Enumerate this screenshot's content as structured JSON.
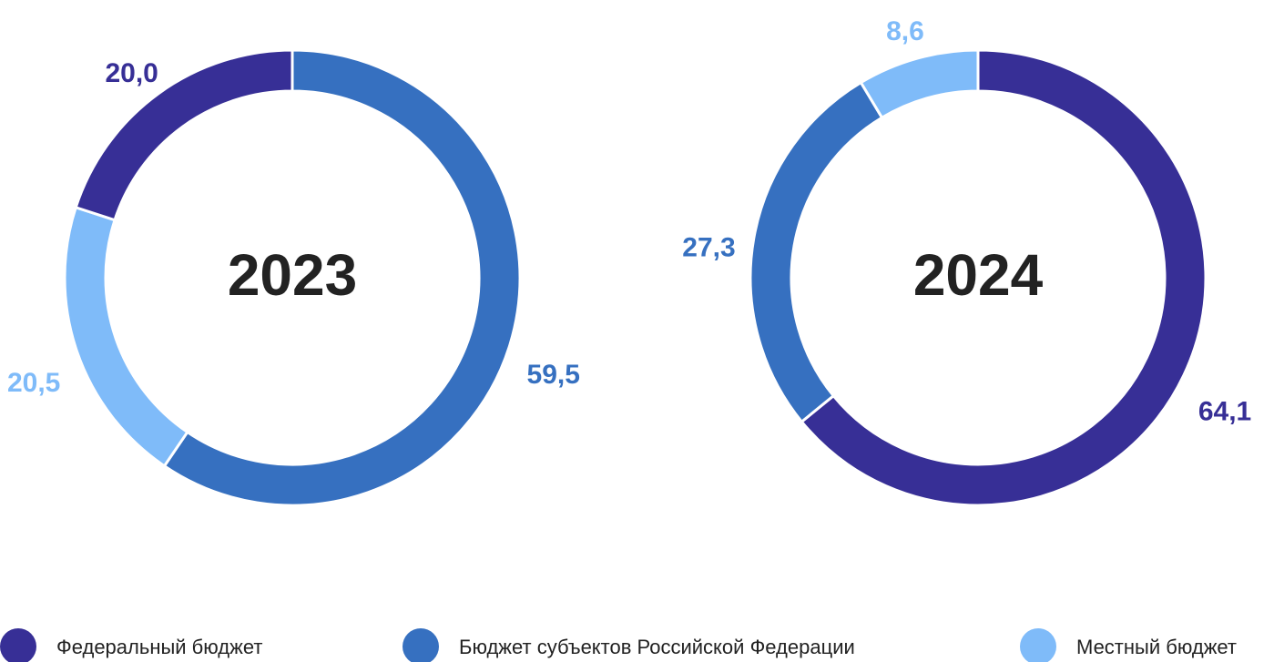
{
  "chart_data": [
    {
      "type": "pie",
      "title": "2023",
      "categories": [
        "Бюджет субъектов Российской Федерации",
        "Местный бюджет",
        "Федеральный бюджет"
      ],
      "values": [
        59.5,
        20.5,
        20.0
      ],
      "value_labels": [
        "59,5",
        "20,5",
        "20,0"
      ],
      "colors": [
        "#3670c0",
        "#7fbbf9",
        "#372f96"
      ]
    },
    {
      "type": "pie",
      "title": "2024",
      "categories": [
        "Федеральный бюджет",
        "Бюджет субъектов Российской Федерации",
        "Местный бюджет"
      ],
      "values": [
        64.1,
        27.3,
        8.6
      ],
      "value_labels": [
        "64,1",
        "27,3",
        "8,6"
      ],
      "colors": [
        "#372f96",
        "#3670c0",
        "#7fbbf9"
      ]
    }
  ],
  "legend": {
    "labels": [
      "Федеральный бюджет",
      "Бюджет субъектов Российской Федерации",
      "Местный бюджет"
    ],
    "colors": [
      "#372f96",
      "#3670c0",
      "#7fbbf9"
    ]
  }
}
